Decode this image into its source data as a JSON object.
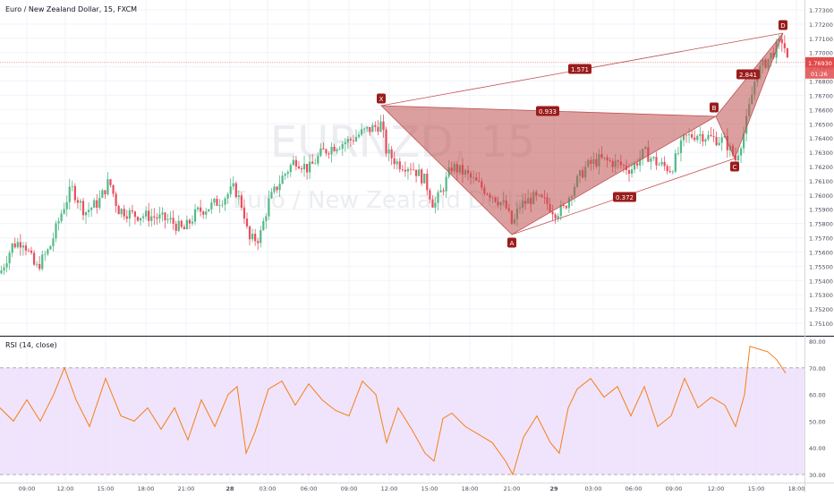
{
  "header": {
    "title": "Euro / New Zealand Dollar, 15, FXCM",
    "watermark_symbol": "EURNZD, 15",
    "watermark_name": "Euro / New Zealand Dollar"
  },
  "price_axis": {
    "ticks": [
      "1.77300",
      "1.77200",
      "1.77100",
      "1.77000",
      "1.76900",
      "1.76800",
      "1.76700",
      "1.76600",
      "1.76500",
      "1.76400",
      "1.76300",
      "1.76200",
      "1.76100",
      "1.76000",
      "1.75900",
      "1.75800",
      "1.75700",
      "1.75600",
      "1.75500",
      "1.75400",
      "1.75300",
      "1.75200",
      "1.75100"
    ],
    "last_price_label": "1.76930",
    "countdown_label": "01:26"
  },
  "rsi": {
    "title": "RSI (14, close)",
    "ticks": [
      "80.00",
      "70.00",
      "60.00",
      "50.00",
      "40.00",
      "30.00"
    ]
  },
  "time_axis": {
    "ticks": [
      "09:00",
      "12:00",
      "15:00",
      "18:00",
      "21:00",
      "28",
      "03:00",
      "06:00",
      "09:00",
      "12:00",
      "15:00",
      "18:00",
      "21:00",
      "29",
      "03:00",
      "06:00",
      "09:00",
      "12:00",
      "15:00",
      "18:00"
    ]
  },
  "pattern": {
    "points": {
      "X": "X",
      "A": "A",
      "B": "B",
      "C": "C",
      "D": "D"
    },
    "ratios": {
      "xb": "0.933",
      "ac": "0.372",
      "xd": "1.571",
      "bd": "2.841"
    }
  },
  "colors": {
    "up": "#53b987",
    "down": "#eb4d5c",
    "pattern_fill": "#c05050",
    "pattern_label": "#9b1c1c",
    "rsi_line": "#f57f17",
    "rsi_band": "#e9d9fb",
    "price_line": "#e07474"
  },
  "chart_data": [
    {
      "type": "candlestick",
      "title": "Euro / New Zealand Dollar, 15, FXCM",
      "ylim": [
        1.7505,
        1.7735
      ],
      "x_ticks": [
        "09:00",
        "12:00",
        "15:00",
        "18:00",
        "21:00",
        "28",
        "03:00",
        "06:00",
        "09:00",
        "12:00",
        "15:00",
        "18:00",
        "21:00",
        "29",
        "03:00",
        "06:00",
        "09:00",
        "12:00",
        "15:00",
        "18:00"
      ],
      "close_path": [
        [
          0,
          1.7545
        ],
        [
          14,
          1.7565
        ],
        [
          26,
          1.7568
        ],
        [
          40,
          1.7548
        ],
        [
          55,
          1.7562
        ],
        [
          70,
          1.759
        ],
        [
          80,
          1.7605
        ],
        [
          95,
          1.7588
        ],
        [
          110,
          1.7595
        ],
        [
          122,
          1.761
        ],
        [
          132,
          1.759
        ],
        [
          150,
          1.7586
        ],
        [
          170,
          1.7585
        ],
        [
          190,
          1.7582
        ],
        [
          205,
          1.7575
        ],
        [
          220,
          1.7588
        ],
        [
          235,
          1.7592
        ],
        [
          250,
          1.7598
        ],
        [
          262,
          1.7605
        ],
        [
          272,
          1.759
        ],
        [
          278,
          1.7568
        ],
        [
          290,
          1.757
        ],
        [
          300,
          1.7595
        ],
        [
          315,
          1.7612
        ],
        [
          330,
          1.7625
        ],
        [
          345,
          1.7618
        ],
        [
          360,
          1.763
        ],
        [
          375,
          1.7635
        ],
        [
          390,
          1.7638
        ],
        [
          405,
          1.7644
        ],
        [
          420,
          1.7648
        ],
        [
          426,
          1.765
        ],
        [
          432,
          1.763
        ],
        [
          445,
          1.7622
        ],
        [
          460,
          1.762
        ],
        [
          475,
          1.761
        ],
        [
          485,
          1.7592
        ],
        [
          495,
          1.7605
        ],
        [
          505,
          1.762
        ],
        [
          520,
          1.7615
        ],
        [
          535,
          1.7607
        ],
        [
          550,
          1.76
        ],
        [
          565,
          1.7592
        ],
        [
          573,
          1.7578
        ],
        [
          580,
          1.7592
        ],
        [
          595,
          1.7598
        ],
        [
          610,
          1.7595
        ],
        [
          620,
          1.7588
        ],
        [
          630,
          1.759
        ],
        [
          640,
          1.7605
        ],
        [
          655,
          1.762
        ],
        [
          670,
          1.7625
        ],
        [
          690,
          1.7622
        ],
        [
          705,
          1.7618
        ],
        [
          720,
          1.763
        ],
        [
          735,
          1.7622
        ],
        [
          750,
          1.7618
        ],
        [
          765,
          1.764
        ],
        [
          780,
          1.7643
        ],
        [
          795,
          1.764
        ],
        [
          810,
          1.7638
        ],
        [
          822,
          1.7625
        ],
        [
          832,
          1.7645
        ],
        [
          845,
          1.7685
        ],
        [
          858,
          1.7695
        ],
        [
          870,
          1.7705
        ],
        [
          875,
          1.771
        ],
        [
          880,
          1.7693
        ]
      ]
    },
    {
      "type": "line",
      "title": "RSI (14, close)",
      "ylim": [
        28,
        81
      ],
      "guide_levels": [
        30,
        70
      ],
      "values": [
        [
          0,
          55
        ],
        [
          15,
          50
        ],
        [
          30,
          58
        ],
        [
          45,
          50
        ],
        [
          60,
          60
        ],
        [
          72,
          70
        ],
        [
          85,
          58
        ],
        [
          100,
          48
        ],
        [
          118,
          66
        ],
        [
          135,
          52
        ],
        [
          150,
          50
        ],
        [
          165,
          55
        ],
        [
          180,
          47
        ],
        [
          195,
          55
        ],
        [
          210,
          43
        ],
        [
          225,
          58
        ],
        [
          240,
          48
        ],
        [
          255,
          60
        ],
        [
          265,
          63
        ],
        [
          275,
          38
        ],
        [
          285,
          46
        ],
        [
          300,
          62
        ],
        [
          315,
          65
        ],
        [
          330,
          56
        ],
        [
          345,
          64
        ],
        [
          360,
          58
        ],
        [
          375,
          54
        ],
        [
          390,
          52
        ],
        [
          405,
          65
        ],
        [
          420,
          60
        ],
        [
          432,
          42
        ],
        [
          445,
          55
        ],
        [
          460,
          47
        ],
        [
          475,
          38
        ],
        [
          485,
          35
        ],
        [
          495,
          51
        ],
        [
          505,
          53
        ],
        [
          520,
          48
        ],
        [
          535,
          45
        ],
        [
          550,
          42
        ],
        [
          565,
          35
        ],
        [
          573,
          30
        ],
        [
          585,
          44
        ],
        [
          600,
          52
        ],
        [
          615,
          42
        ],
        [
          625,
          38
        ],
        [
          635,
          55
        ],
        [
          645,
          62
        ],
        [
          660,
          66
        ],
        [
          675,
          59
        ],
        [
          690,
          63
        ],
        [
          705,
          52
        ],
        [
          720,
          63
        ],
        [
          735,
          48
        ],
        [
          750,
          52
        ],
        [
          765,
          66
        ],
        [
          780,
          55
        ],
        [
          795,
          59
        ],
        [
          810,
          56
        ],
        [
          822,
          48
        ],
        [
          832,
          60
        ],
        [
          838,
          78
        ],
        [
          848,
          77
        ],
        [
          858,
          76
        ],
        [
          868,
          73
        ],
        [
          878,
          68
        ]
      ]
    }
  ]
}
